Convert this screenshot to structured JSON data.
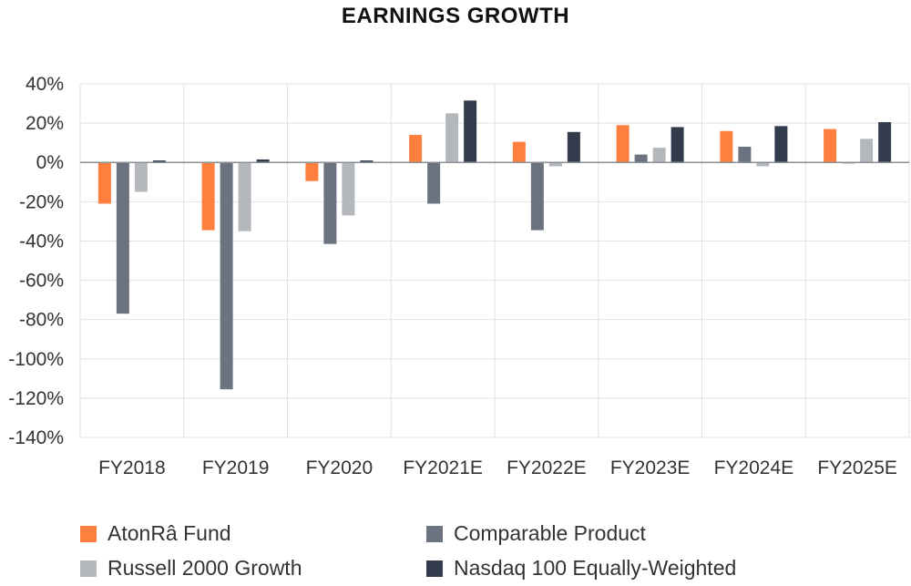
{
  "chart_data": {
    "type": "bar",
    "title": "EARNINGS GROWTH",
    "categories": [
      "FY2018",
      "FY2019",
      "FY2020",
      "FY2021E",
      "FY2022E",
      "FY2023E",
      "FY2024E",
      "FY2025E"
    ],
    "ylim": [
      -140,
      40
    ],
    "yticks": [
      "40%",
      "20%",
      "0%",
      "-20%",
      "-40%",
      "-60%",
      "-80%",
      "-100%",
      "-120%",
      "-140%"
    ],
    "grid": true,
    "legend_position": "bottom",
    "series": [
      {
        "name": "AtonRâ Fund",
        "color": "#ff7f3f",
        "values": [
          -21,
          -34.5,
          -9.5,
          14,
          10.5,
          19,
          16,
          17
        ]
      },
      {
        "name": "Comparable Product",
        "color": "#6b7380",
        "values": [
          -77,
          -115.5,
          -41.5,
          -21,
          -34.5,
          4,
          8,
          -0.5
        ]
      },
      {
        "name": "Russell 2000 Growth",
        "color": "#b4b8bd",
        "values": [
          -15,
          -35,
          -27,
          25,
          -2,
          7.5,
          -2,
          12
        ]
      },
      {
        "name": "Nasdaq 100 Equally-Weighted",
        "color": "#323c4d",
        "values": [
          1,
          1.5,
          1,
          31.5,
          15.5,
          18,
          18.5,
          20.5
        ]
      }
    ]
  }
}
